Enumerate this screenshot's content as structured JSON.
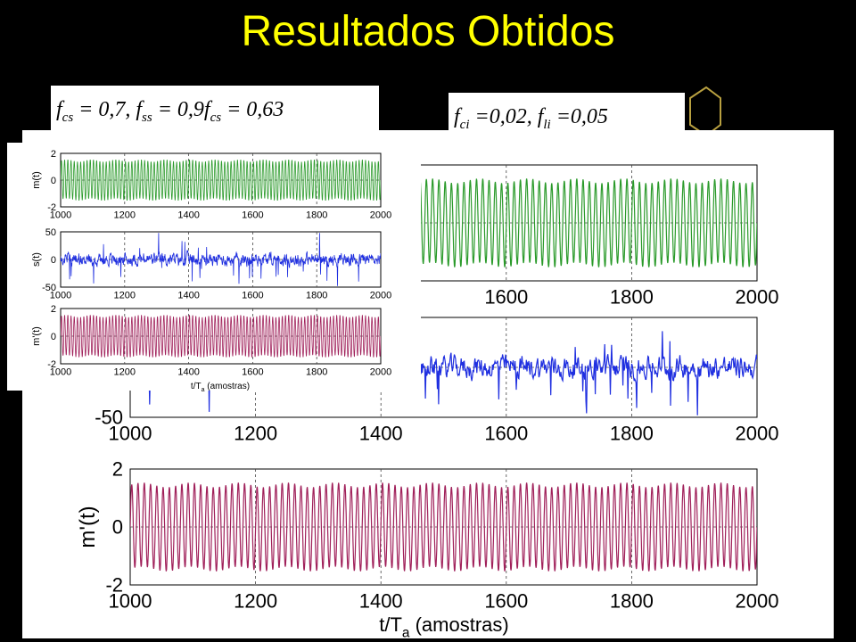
{
  "title": "Resultados Obtidos",
  "equations": {
    "left": {
      "p1": "f",
      "s1": "cs",
      "p2": " = 0,7, f",
      "s2": "ss",
      "p3": " = 0,9f",
      "s3": "cs",
      "p4": " = 0,63"
    },
    "right": {
      "p1": "f",
      "s1": "ci",
      "p2": " =0,02, f",
      "s2": "li",
      "p3": " =0,05"
    }
  },
  "chart_data": [
    {
      "type": "line",
      "name": "main",
      "xlabel": "t/T",
      "xlabel_sub": "a",
      "xlabel_tail": " (amostras)",
      "panels": [
        {
          "ylabel": "m(t)",
          "color": "#2a9a2a",
          "xlim": [
            1000,
            2000
          ],
          "ylim": [
            -2,
            2
          ],
          "yticks": [],
          "xticks": [
            1600,
            1800,
            2000
          ],
          "signal": "carrier"
        },
        {
          "ylabel": "s(t)",
          "color": "#1f2fe0",
          "xlim": [
            1000,
            2000
          ],
          "ylim": [
            -50,
            50
          ],
          "yticks": [
            -50
          ],
          "xticks": [
            1000,
            1200,
            1400,
            1600,
            1800,
            2000
          ],
          "signal": "noise"
        },
        {
          "ylabel": "m'(t)",
          "color": "#a0205a",
          "xlim": [
            1000,
            2000
          ],
          "ylim": [
            -2,
            2
          ],
          "yticks": [
            2,
            0,
            -2
          ],
          "xticks": [
            1000,
            1200,
            1400,
            1600,
            1800,
            2000
          ],
          "signal": "carrier"
        }
      ]
    },
    {
      "type": "line",
      "name": "inset",
      "xlabel": "t/T",
      "xlabel_sub": "a",
      "xlabel_tail": " (amostras)",
      "panels": [
        {
          "ylabel": "m(t)",
          "color": "#2a9a2a",
          "xlim": [
            1000,
            2000
          ],
          "ylim": [
            -2,
            2
          ],
          "yticks": [
            2,
            0,
            -2
          ],
          "xticks": [
            1000,
            1200,
            1400,
            1600,
            1800,
            2000
          ],
          "signal": "carrier"
        },
        {
          "ylabel": "s(t)",
          "color": "#1f2fe0",
          "xlim": [
            1000,
            2000
          ],
          "ylim": [
            -50,
            50
          ],
          "yticks": [
            50,
            0,
            -50
          ],
          "xticks": [
            1000,
            1200,
            1400,
            1600,
            1800,
            2000
          ],
          "signal": "noise"
        },
        {
          "ylabel": "m'(t)",
          "color": "#a0205a",
          "xlim": [
            1000,
            2000
          ],
          "ylim": [
            -2,
            2
          ],
          "yticks": [
            2,
            0,
            -2
          ],
          "xticks": [
            1000,
            1200,
            1400,
            1600,
            1800,
            2000
          ],
          "signal": "carrier"
        }
      ]
    }
  ]
}
